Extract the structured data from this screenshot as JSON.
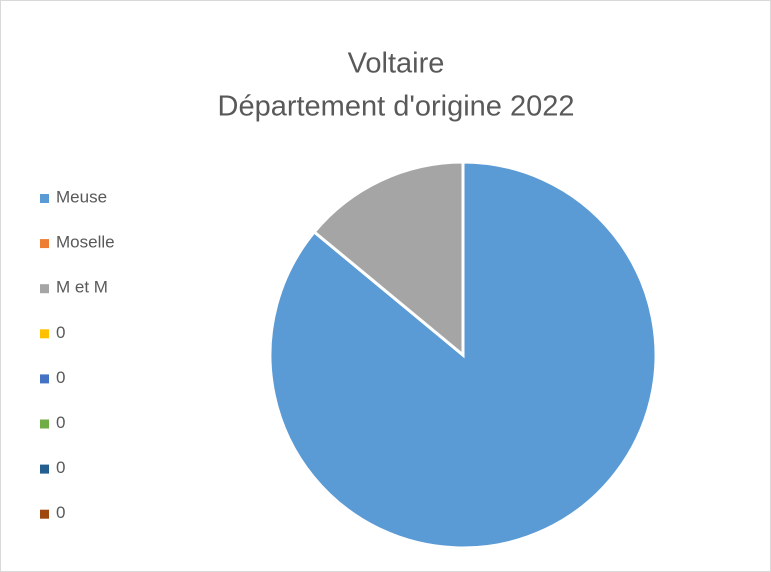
{
  "chart_data": {
    "type": "pie",
    "title": [
      "Voltaire",
      "Département d'origine 2022"
    ],
    "categories": [
      "Meuse",
      "Moselle",
      "M et M",
      "0",
      "0",
      "0",
      "0",
      "0"
    ],
    "values": [
      86,
      0,
      14,
      0,
      0,
      0,
      0,
      0
    ],
    "colors": [
      "#5b9bd5",
      "#ed7d31",
      "#a5a5a5",
      "#ffc000",
      "#4472c4",
      "#70ad47",
      "#255e91",
      "#9e480e"
    ],
    "legend": "left"
  }
}
